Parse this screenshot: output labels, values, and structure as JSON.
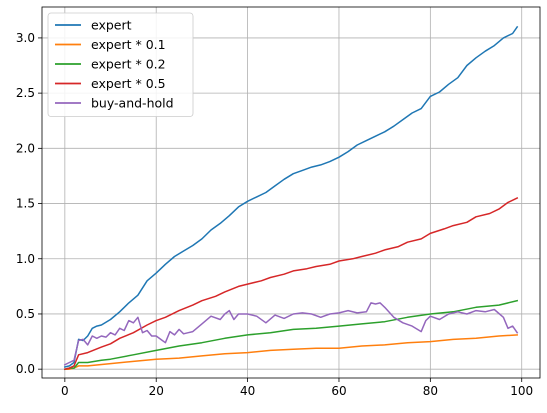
{
  "chart_data": {
    "type": "line",
    "title": "",
    "xlabel": "",
    "ylabel": "",
    "xlim": [
      -5,
      104
    ],
    "ylim": [
      -0.08,
      3.28
    ],
    "x_ticks": [
      0,
      20,
      40,
      60,
      80,
      100
    ],
    "y_ticks": [
      0.0,
      0.5,
      1.0,
      1.5,
      2.0,
      2.5,
      3.0
    ],
    "x_tick_labels": [
      "0",
      "20",
      "40",
      "60",
      "80",
      "100"
    ],
    "y_tick_labels": [
      "0.0",
      "0.5",
      "1.0",
      "1.5",
      "2.0",
      "2.5",
      "3.0"
    ],
    "grid": true,
    "legend_position": "top-left",
    "series": [
      {
        "name": "expert",
        "color": "#1f77b4",
        "x": [
          0,
          1,
          2,
          3,
          4,
          5,
          6,
          7,
          8,
          10,
          12,
          14,
          16,
          18,
          20,
          22,
          24,
          26,
          28,
          30,
          32,
          34,
          36,
          38,
          40,
          42,
          44,
          46,
          48,
          50,
          52,
          54,
          56,
          58,
          60,
          62,
          64,
          66,
          68,
          70,
          72,
          74,
          76,
          78,
          80,
          82,
          84,
          86,
          88,
          90,
          92,
          94,
          96,
          98,
          99
        ],
        "y": [
          0.02,
          0.03,
          0.06,
          0.27,
          0.26,
          0.3,
          0.37,
          0.39,
          0.4,
          0.45,
          0.52,
          0.6,
          0.67,
          0.8,
          0.87,
          0.95,
          1.02,
          1.07,
          1.12,
          1.18,
          1.26,
          1.32,
          1.39,
          1.47,
          1.52,
          1.56,
          1.6,
          1.66,
          1.72,
          1.77,
          1.8,
          1.83,
          1.85,
          1.88,
          1.92,
          1.97,
          2.03,
          2.07,
          2.11,
          2.15,
          2.2,
          2.26,
          2.32,
          2.36,
          2.47,
          2.51,
          2.58,
          2.64,
          2.75,
          2.82,
          2.88,
          2.93,
          3.0,
          3.04,
          3.1
        ]
      },
      {
        "name": "expert * 0.1",
        "color": "#ff7f0e",
        "x": [
          0,
          1,
          2,
          3,
          5,
          10,
          15,
          20,
          25,
          30,
          35,
          40,
          45,
          50,
          55,
          60,
          65,
          70,
          75,
          80,
          85,
          90,
          95,
          99
        ],
        "y": [
          0.0,
          0.0,
          0.01,
          0.03,
          0.03,
          0.05,
          0.07,
          0.09,
          0.1,
          0.12,
          0.14,
          0.15,
          0.17,
          0.18,
          0.19,
          0.19,
          0.21,
          0.22,
          0.24,
          0.25,
          0.27,
          0.28,
          0.3,
          0.31
        ]
      },
      {
        "name": "expert * 0.2",
        "color": "#2ca02c",
        "x": [
          0,
          1,
          2,
          3,
          5,
          8,
          10,
          15,
          20,
          25,
          30,
          35,
          40,
          45,
          50,
          55,
          60,
          65,
          70,
          75,
          80,
          85,
          90,
          95,
          99
        ],
        "y": [
          0.0,
          0.01,
          0.01,
          0.06,
          0.06,
          0.08,
          0.09,
          0.13,
          0.17,
          0.21,
          0.24,
          0.28,
          0.31,
          0.33,
          0.36,
          0.37,
          0.39,
          0.41,
          0.43,
          0.47,
          0.5,
          0.52,
          0.56,
          0.58,
          0.62
        ]
      },
      {
        "name": "expert * 0.5",
        "color": "#d62728",
        "x": [
          0,
          1,
          2,
          3,
          5,
          8,
          10,
          12,
          15,
          18,
          20,
          22,
          25,
          28,
          30,
          33,
          35,
          38,
          40,
          43,
          45,
          48,
          50,
          53,
          55,
          58,
          60,
          63,
          65,
          68,
          70,
          73,
          75,
          78,
          80,
          83,
          85,
          88,
          90,
          93,
          95,
          97,
          99
        ],
        "y": [
          0.0,
          0.01,
          0.03,
          0.13,
          0.15,
          0.2,
          0.23,
          0.28,
          0.33,
          0.4,
          0.44,
          0.47,
          0.53,
          0.58,
          0.62,
          0.66,
          0.7,
          0.75,
          0.77,
          0.8,
          0.83,
          0.86,
          0.89,
          0.91,
          0.93,
          0.95,
          0.98,
          1.0,
          1.02,
          1.05,
          1.08,
          1.11,
          1.15,
          1.18,
          1.23,
          1.27,
          1.3,
          1.33,
          1.38,
          1.41,
          1.45,
          1.51,
          1.55
        ]
      },
      {
        "name": "buy-and-hold",
        "color": "#9467bd",
        "x": [
          0,
          1,
          2,
          3,
          4,
          5,
          6,
          7,
          8,
          9,
          10,
          11,
          12,
          13,
          14,
          15,
          16,
          17,
          18,
          19,
          20,
          21,
          22,
          23,
          24,
          25,
          26,
          27,
          28,
          30,
          32,
          34,
          35,
          36,
          37,
          38,
          40,
          42,
          44,
          46,
          48,
          50,
          52,
          54,
          56,
          58,
          60,
          62,
          64,
          66,
          67,
          68,
          69,
          70,
          72,
          74,
          76,
          78,
          79,
          80,
          82,
          84,
          86,
          88,
          90,
          92,
          94,
          96,
          97,
          98,
          99
        ],
        "y": [
          0.04,
          0.06,
          0.08,
          0.26,
          0.27,
          0.22,
          0.3,
          0.28,
          0.3,
          0.29,
          0.33,
          0.31,
          0.37,
          0.35,
          0.44,
          0.42,
          0.47,
          0.33,
          0.35,
          0.3,
          0.3,
          0.27,
          0.24,
          0.34,
          0.31,
          0.36,
          0.32,
          0.33,
          0.34,
          0.41,
          0.48,
          0.45,
          0.5,
          0.53,
          0.45,
          0.5,
          0.5,
          0.48,
          0.42,
          0.49,
          0.46,
          0.5,
          0.51,
          0.5,
          0.47,
          0.5,
          0.51,
          0.53,
          0.51,
          0.52,
          0.6,
          0.59,
          0.6,
          0.56,
          0.47,
          0.42,
          0.39,
          0.34,
          0.44,
          0.48,
          0.45,
          0.5,
          0.52,
          0.5,
          0.53,
          0.52,
          0.54,
          0.47,
          0.37,
          0.39,
          0.33
        ]
      }
    ]
  }
}
